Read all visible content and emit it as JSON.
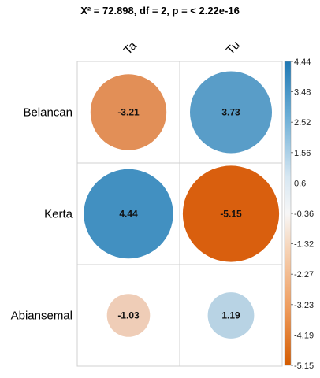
{
  "chart_data": {
    "type": "heatmap",
    "title": "X² = 72.898, df = 2, p = < 2.22e-16",
    "rows": [
      "Belancan",
      "Kerta",
      "Abiansemal"
    ],
    "columns": [
      "Ta",
      "Tu"
    ],
    "values": [
      [
        -3.21,
        3.73
      ],
      [
        4.44,
        -5.15
      ],
      [
        -1.03,
        1.19
      ]
    ],
    "value_labels": [
      [
        "-3.21",
        "3.73"
      ],
      [
        "4.44",
        "-5.15"
      ],
      [
        "-1.03",
        "1.19"
      ]
    ],
    "colorbar": {
      "min": -5.15,
      "max": 4.44,
      "ticks": [
        "4.44",
        "3.48",
        "2.52",
        "1.56",
        "0.6",
        "-0.36",
        "-1.32",
        "-2.27",
        "-3.23",
        "-4.19",
        "-5.15"
      ],
      "positive_color": "#2b83ba",
      "negative_color": "#d95f0e",
      "mid_color": "#f7f7f7"
    },
    "grid": true,
    "legend": "right"
  }
}
